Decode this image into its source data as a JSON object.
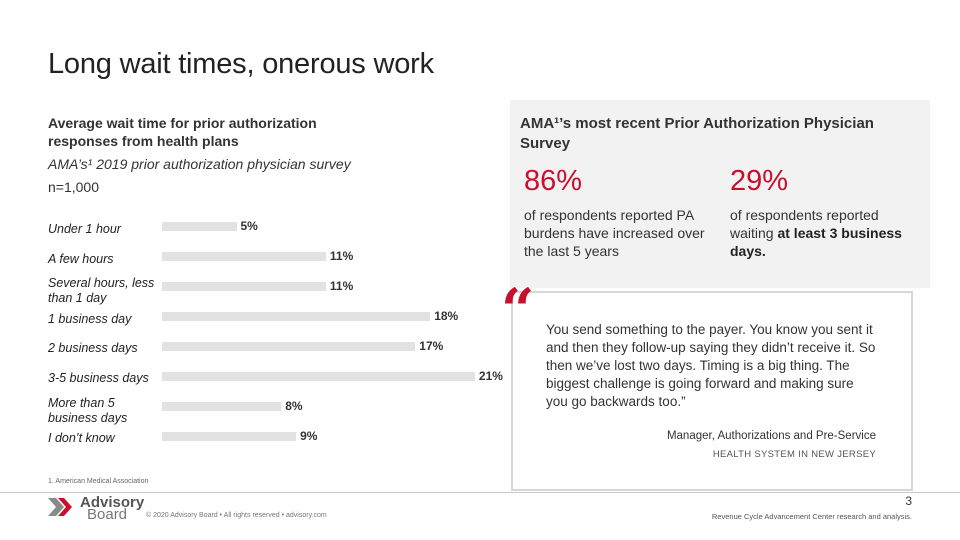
{
  "title": "Long wait times, onerous work",
  "left": {
    "heading": "Average wait time for prior authorization responses from health plans",
    "survey_name": "AMA’s¹ 2019 prior authorization physician survey",
    "sample_size": "n=1,000"
  },
  "chart_data": {
    "type": "bar",
    "orientation": "horizontal",
    "categories": [
      "Under 1 hour",
      "A few hours",
      "Several hours, less than 1 day",
      "1 business day",
      "2 business days",
      "3-5 business days",
      "More than 5 business days",
      "I don’t know"
    ],
    "values": [
      5,
      11,
      11,
      18,
      17,
      21,
      8,
      9
    ],
    "value_labels": [
      "5%",
      "11%",
      "11%",
      "18%",
      "17%",
      "21%",
      "8%",
      "9%"
    ],
    "bar_color": "#e2e2e2",
    "unit": "%"
  },
  "ama": {
    "heading": "AMA¹’s most recent Prior Authorization Physician Survey",
    "stat1_value": "86%",
    "stat1_desc": "of respondents reported PA burdens have increased over the last 5 years",
    "stat2_value": "29%",
    "stat2_desc_pre": "of respondents reported waiting ",
    "stat2_desc_bold": "at least 3 business days.",
    "accent_color": "#c8102e"
  },
  "quote": {
    "mark": "“",
    "text": "You send something to the payer. You know you sent it and then they follow-up saying they didn’t receive it. So then we’ve lost two days. Timing is a big thing. The biggest challenge is going forward and making sure you go backwards too.”",
    "author": "Manager, Authorizations and Pre-Service",
    "org": "HEALTH SYSTEM IN NEW JERSEY"
  },
  "footer": {
    "footnote": "1. American Medical Association",
    "logo_line1": "Advisory",
    "logo_line2": "Board",
    "copyright": "© 2020 Advisory Board • All rights reserved • advisory.com",
    "page_number": "3",
    "source": "Revenue Cycle Advancement Center research and analysis."
  }
}
